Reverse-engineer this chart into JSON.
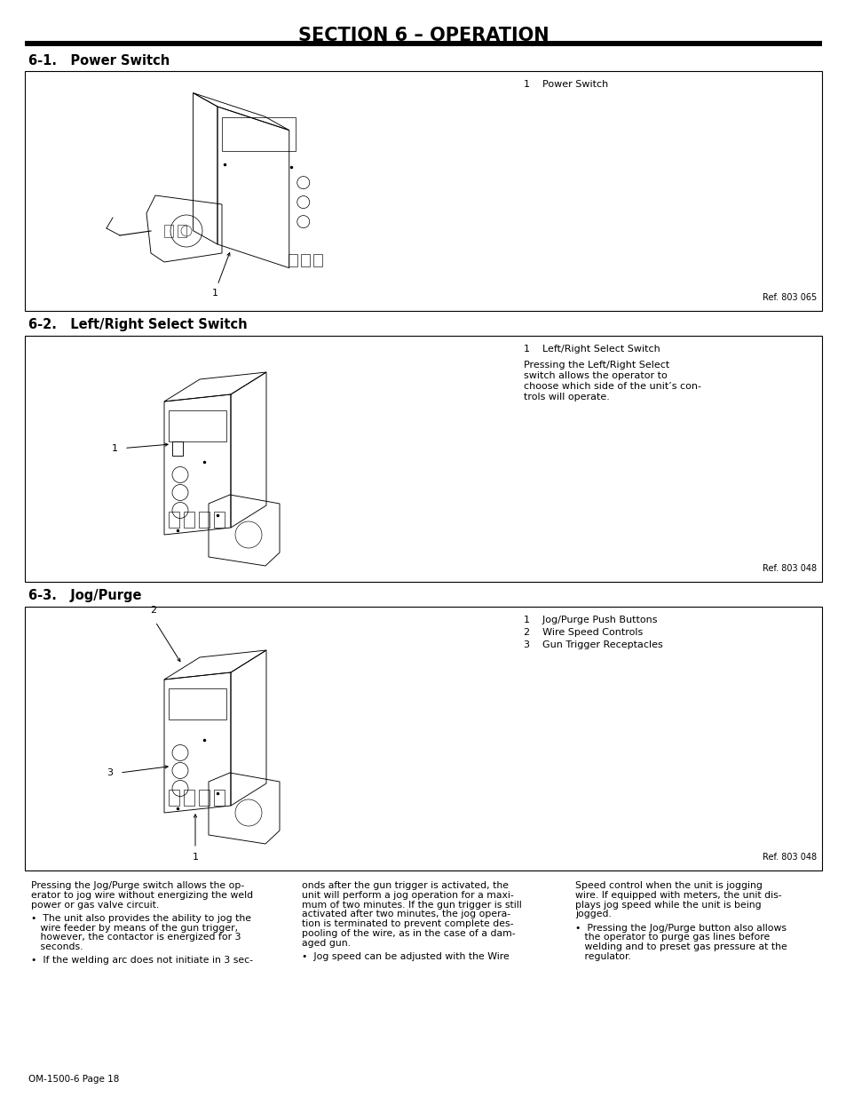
{
  "title": "SECTION 6 – OPERATION",
  "background_color": "#ffffff",
  "page_label": "OM-1500-6 Page 18",
  "thick_rule_color": "#000000",
  "sections": [
    {
      "heading": "6-1.   Power Switch",
      "box_ref": "Ref. 803 065",
      "labels": [
        {
          "num": "1",
          "text": "Power Switch"
        }
      ],
      "description": []
    },
    {
      "heading": "6-2.   Left/Right Select Switch",
      "box_ref": "Ref. 803 048",
      "labels": [
        {
          "num": "1",
          "text": "Left/Right Select Switch"
        }
      ],
      "description": [
        "Pressing the Left/Right Select switch allows the operator to choose which side of the unit’s controls will operate."
      ]
    },
    {
      "heading": "6-3.   Jog/Purge",
      "box_ref": "Ref. 803 048",
      "labels": [
        {
          "num": "1",
          "text": "Jog/Purge Push Buttons"
        },
        {
          "num": "2",
          "text": "Wire Speed Controls"
        },
        {
          "num": "3",
          "text": "Gun Trigger Receptacles"
        }
      ],
      "description": []
    }
  ],
  "bottom_text_col1_lines": [
    "Pressing the Jog/Purge switch allows the op-",
    "erator to jog wire without energizing the weld",
    "power or gas valve circuit.",
    "",
    "•  The unit also provides the ability to jog the",
    "   wire feeder by means of the gun trigger,",
    "   however, the contactor is energized for 3",
    "   seconds.",
    "",
    "•  If the welding arc does not initiate in 3 sec-"
  ],
  "bottom_text_col2_lines": [
    "onds after the gun trigger is activated, the",
    "unit will perform a jog operation for a maxi-",
    "mum of two minutes. If the gun trigger is still",
    "activated after two minutes, the jog opera-",
    "tion is terminated to prevent complete des-",
    "pooling of the wire, as in the case of a dam-",
    "aged gun.",
    "",
    "•  Jog speed can be adjusted with the Wire"
  ],
  "bottom_text_col3_lines": [
    "Speed control when the unit is jogging",
    "wire. If equipped with meters, the unit dis-",
    "plays jog speed while the unit is being",
    "jogged.",
    "",
    "•  Pressing the Jog/Purge button also allows",
    "   the operator to purge gas lines before",
    "   welding and to preset gas pressure at the",
    "   regulator."
  ]
}
